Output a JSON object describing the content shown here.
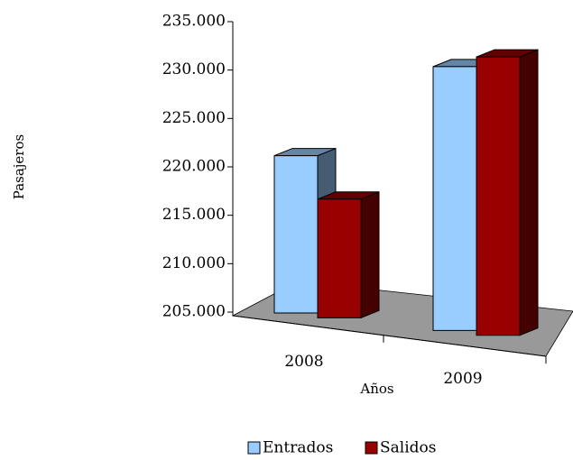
{
  "chart_data": {
    "type": "bar3d",
    "categories": [
      "2008",
      "2009"
    ],
    "series": [
      {
        "name": "Entrados",
        "color": "#99ccff",
        "values": [
          222000,
          233000
        ]
      },
      {
        "name": "Salidos",
        "color": "#990000",
        "values": [
          218000,
          234500
        ]
      }
    ],
    "ylim": [
      205000,
      235000
    ],
    "yticks": [
      {
        "value": 205000,
        "label": "205.000"
      },
      {
        "value": 210000,
        "label": "210.000"
      },
      {
        "value": 215000,
        "label": "215.000"
      },
      {
        "value": 220000,
        "label": "220.000"
      },
      {
        "value": 225000,
        "label": "225.000"
      },
      {
        "value": 230000,
        "label": "230.000"
      },
      {
        "value": 235000,
        "label": "235.000"
      }
    ],
    "y_label": "Pasajeros",
    "x_label": "Años",
    "legend": "bottom"
  }
}
